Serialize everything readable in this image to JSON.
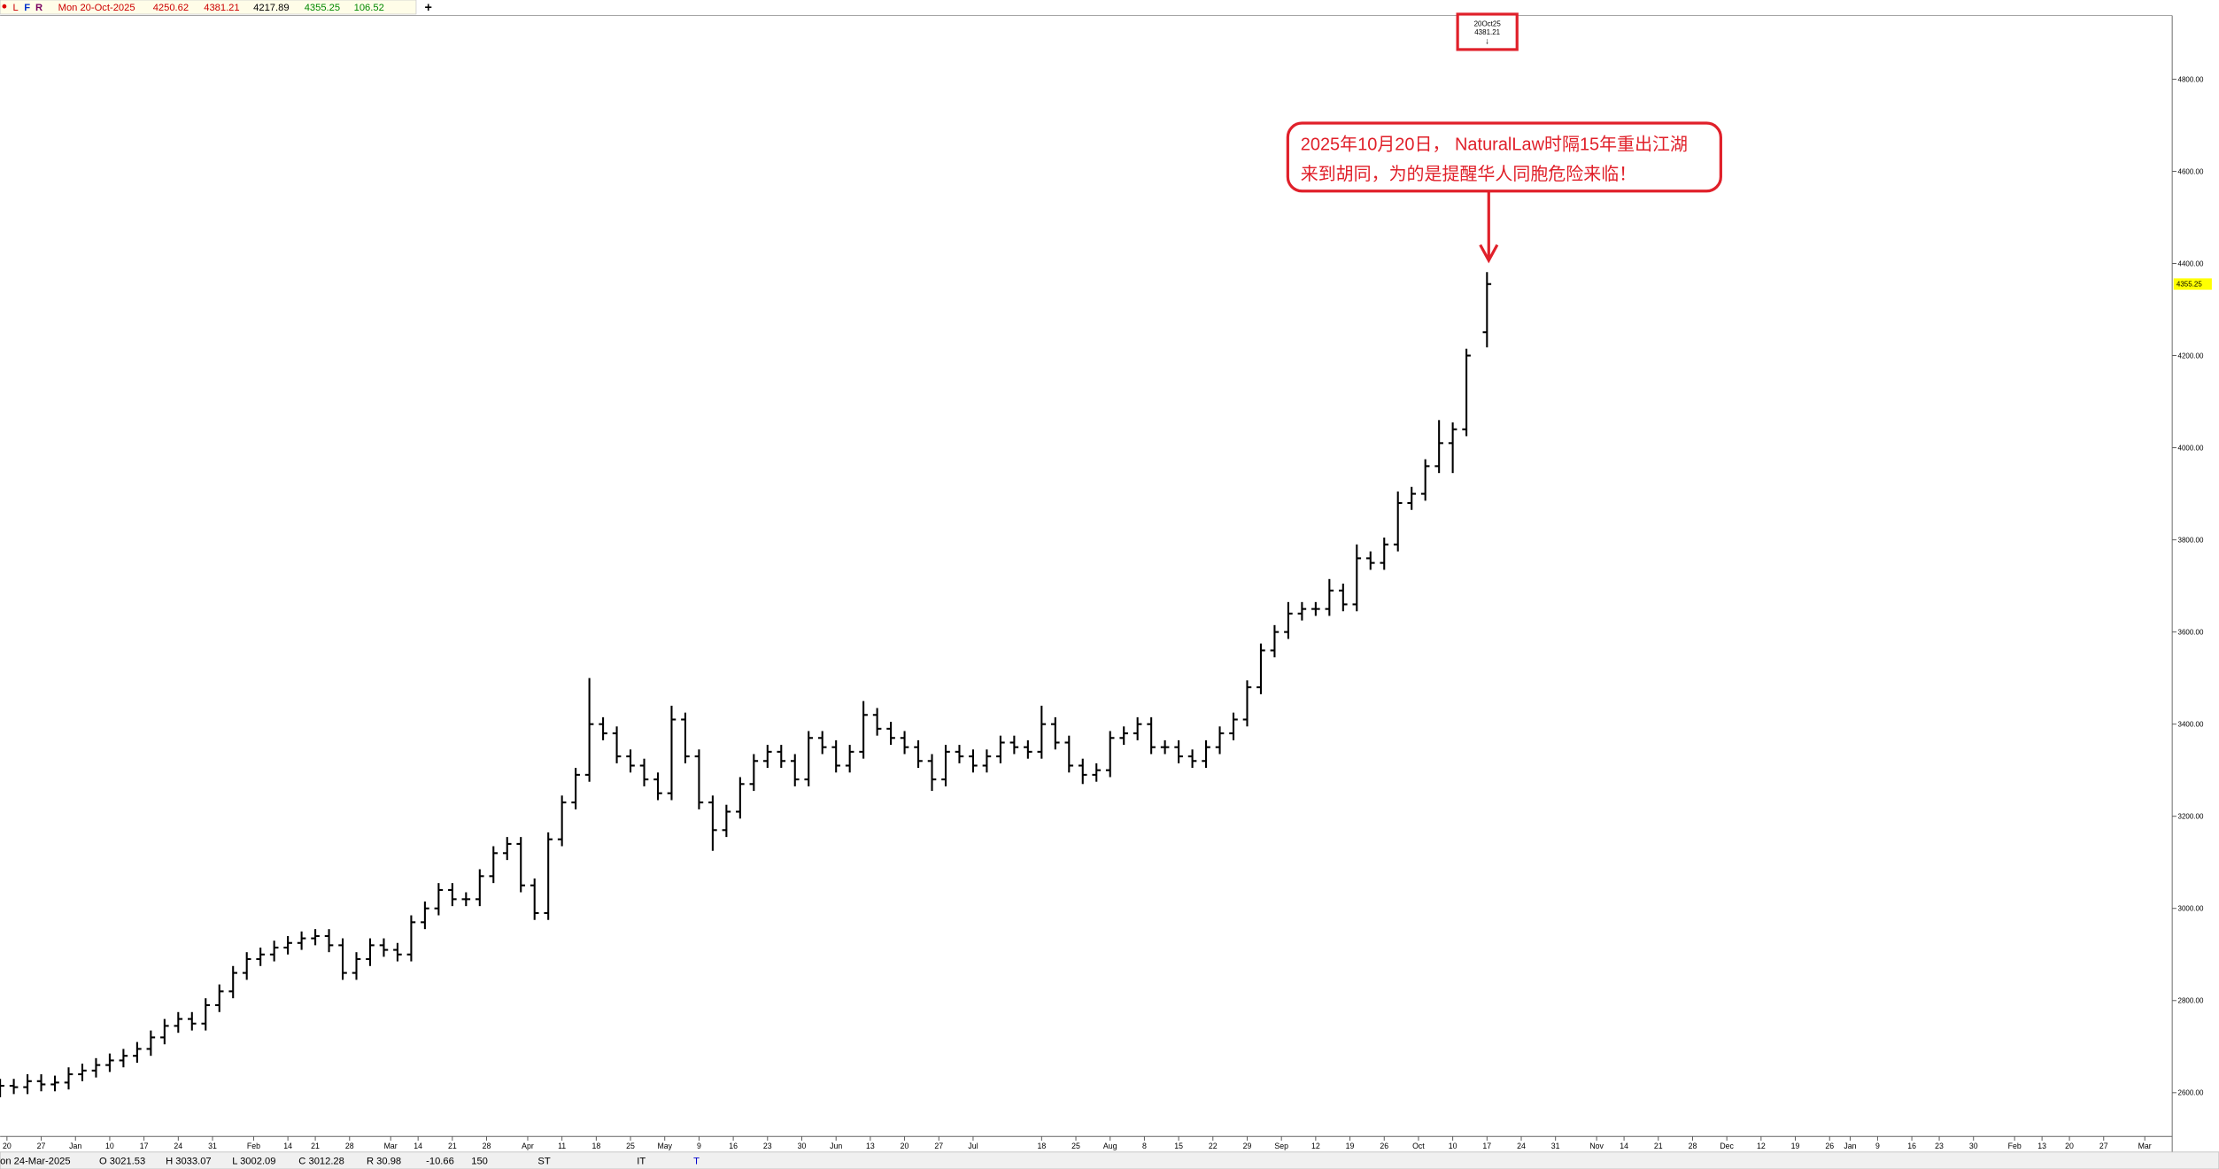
{
  "header": {
    "buttons": [
      "L",
      "F",
      "R"
    ],
    "date": "Mon 20-Oct-2025",
    "change": "106.52",
    "tab": "+"
  },
  "status_bar": {
    "date": "on 24-Mar-2025",
    "open": "O 3021.53",
    "high": "H 3033.07",
    "low": "L 3002.09",
    "close": "C 3012.28",
    "range": "R 30.98",
    "change": "-10.66",
    "count": "150",
    "fields": [
      "ST",
      "IT",
      "T"
    ]
  },
  "chart_data": {
    "type": "ohlc",
    "marker": {
      "date": "20Oct25"
    },
    "annotation": {
      "lines": [
        "2025年10月20日， NaturalLaw时隔15年重出江湖",
        "来到胡同，为的是提醒华人同胞危险来临！"
      ],
      "color": "#e0202a"
    },
    "color": "#000000",
    "xlim": [
      0,
      317
    ],
    "ylim": [
      2505,
      4935
    ],
    "yticks": [
      {
        "value": 2600,
        "label": "2600.00"
      },
      {
        "value": 2800,
        "label": "2800.00"
      },
      {
        "value": 3000,
        "label": "3000.00"
      },
      {
        "value": 3200,
        "label": "3200.00"
      },
      {
        "value": 3400,
        "label": "3400.00"
      },
      {
        "value": 3600,
        "label": "3600.00"
      },
      {
        "value": 3800,
        "label": "3800.00"
      },
      {
        "value": 4000,
        "label": "4000.00"
      },
      {
        "value": 4200,
        "label": "4200.00"
      },
      {
        "value": 4400,
        "label": "4400.00"
      },
      {
        "value": 4600,
        "label": "4600.00"
      },
      {
        "value": 4800,
        "label": "4800.00"
      }
    ],
    "xticks": [
      {
        "value": 1,
        "label": "20"
      },
      {
        "value": 6,
        "label": "27"
      },
      {
        "value": 11,
        "label": "Jan"
      },
      {
        "value": 16,
        "label": "10"
      },
      {
        "value": 21,
        "label": "17"
      },
      {
        "value": 26,
        "label": "24"
      },
      {
        "value": 31,
        "label": "31"
      },
      {
        "value": 37,
        "label": "Feb"
      },
      {
        "value": 42,
        "label": "14"
      },
      {
        "value": 46,
        "label": "21"
      },
      {
        "value": 51,
        "label": "28"
      },
      {
        "value": 57,
        "label": "Mar"
      },
      {
        "value": 61,
        "label": "14"
      },
      {
        "value": 66,
        "label": "21"
      },
      {
        "value": 71,
        "label": "28"
      },
      {
        "value": 77,
        "label": "Apr"
      },
      {
        "value": 82,
        "label": "11"
      },
      {
        "value": 87,
        "label": "18"
      },
      {
        "value": 92,
        "label": "25"
      },
      {
        "value": 97,
        "label": "May"
      },
      {
        "value": 102,
        "label": "9"
      },
      {
        "value": 107,
        "label": "16"
      },
      {
        "value": 112,
        "label": "23"
      },
      {
        "value": 117,
        "label": "30"
      },
      {
        "value": 122,
        "label": "Jun"
      },
      {
        "value": 127,
        "label": "13"
      },
      {
        "value": 132,
        "label": "20"
      },
      {
        "value": 137,
        "label": "27"
      },
      {
        "value": 142,
        "label": "Jul"
      },
      {
        "value": 152,
        "label": "18"
      },
      {
        "value": 157,
        "label": "25"
      },
      {
        "value": 162,
        "label": "Aug"
      },
      {
        "value": 167,
        "label": "8"
      },
      {
        "value": 172,
        "label": "15"
      },
      {
        "value": 177,
        "label": "22"
      },
      {
        "value": 182,
        "label": "29"
      },
      {
        "value": 187,
        "label": "Sep"
      },
      {
        "value": 192,
        "label": "12"
      },
      {
        "value": 197,
        "label": "19"
      },
      {
        "value": 202,
        "label": "26"
      },
      {
        "value": 207,
        "label": "Oct"
      },
      {
        "value": 212,
        "label": "10"
      },
      {
        "value": 217,
        "label": "17"
      },
      {
        "value": 222,
        "label": "24"
      },
      {
        "value": 227,
        "label": "31"
      },
      {
        "value": 233,
        "label": "Nov"
      },
      {
        "value": 237,
        "label": "14"
      },
      {
        "value": 242,
        "label": "21"
      },
      {
        "value": 247,
        "label": "28"
      },
      {
        "value": 252,
        "label": "Dec"
      },
      {
        "value": 257,
        "label": "12"
      },
      {
        "value": 262,
        "label": "19"
      },
      {
        "value": 267,
        "label": "26"
      },
      {
        "value": 270,
        "label": "Jan"
      },
      {
        "value": 274,
        "label": "9"
      },
      {
        "value": 279,
        "label": "16"
      },
      {
        "value": 283,
        "label": "23"
      },
      {
        "value": 288,
        "label": "30"
      },
      {
        "value": 294,
        "label": "Feb"
      },
      {
        "value": 298,
        "label": "13"
      },
      {
        "value": 302,
        "label": "20"
      },
      {
        "value": 307,
        "label": "27"
      },
      {
        "value": 313,
        "label": "Mar"
      }
    ],
    "x": [
      0,
      2,
      4,
      6,
      8,
      10,
      12,
      14,
      16,
      18,
      20,
      22,
      24,
      26,
      28,
      30,
      32,
      34,
      36,
      38,
      40,
      42,
      44,
      46,
      48,
      50,
      52,
      54,
      56,
      58,
      60,
      62,
      64,
      66,
      68,
      70,
      72,
      74,
      76,
      78,
      80,
      82,
      84,
      86,
      88,
      90,
      92,
      94,
      96,
      98,
      100,
      102,
      104,
      106,
      108,
      110,
      112,
      114,
      116,
      118,
      120,
      122,
      124,
      126,
      128,
      130,
      132,
      134,
      136,
      138,
      140,
      142,
      144,
      146,
      148,
      150,
      152,
      154,
      156,
      158,
      160,
      162,
      164,
      166,
      168,
      170,
      172,
      174,
      176,
      178,
      180,
      182,
      184,
      186,
      188,
      190,
      192,
      194,
      196,
      198,
      200,
      202,
      204,
      206,
      208,
      210,
      212,
      214,
      217
    ],
    "bars": [
      [
        2605,
        2630,
        2590,
        2615
      ],
      [
        2615,
        2630,
        2597,
        2612
      ],
      [
        2612,
        2640,
        2597,
        2625
      ],
      [
        2625,
        2640,
        2603,
        2618
      ],
      [
        2618,
        2637,
        2603,
        2622
      ],
      [
        2622,
        2655,
        2607,
        2640
      ],
      [
        2640,
        2663,
        2625,
        2648
      ],
      [
        2648,
        2675,
        2633,
        2660
      ],
      [
        2660,
        2685,
        2645,
        2670
      ],
      [
        2670,
        2695,
        2655,
        2680
      ],
      [
        2680,
        2710,
        2665,
        2695
      ],
      [
        2695,
        2735,
        2680,
        2720
      ],
      [
        2720,
        2760,
        2705,
        2745
      ],
      [
        2745,
        2775,
        2730,
        2760
      ],
      [
        2760,
        2775,
        2735,
        2750
      ],
      [
        2750,
        2805,
        2735,
        2790
      ],
      [
        2790,
        2835,
        2775,
        2820
      ],
      [
        2820,
        2875,
        2805,
        2860
      ],
      [
        2860,
        2905,
        2845,
        2890
      ],
      [
        2890,
        2915,
        2875,
        2900
      ],
      [
        2900,
        2930,
        2885,
        2915
      ],
      [
        2915,
        2940,
        2900,
        2925
      ],
      [
        2925,
        2950,
        2910,
        2935
      ],
      [
        2935,
        2955,
        2920,
        2940
      ],
      [
        2940,
        2955,
        2905,
        2920
      ],
      [
        2920,
        2935,
        2845,
        2860
      ],
      [
        2860,
        2905,
        2845,
        2890
      ],
      [
        2890,
        2935,
        2875,
        2920
      ],
      [
        2920,
        2935,
        2895,
        2910
      ],
      [
        2910,
        2925,
        2885,
        2900
      ],
      [
        2900,
        2985,
        2885,
        2970
      ],
      [
        2970,
        3015,
        2955,
        3000
      ],
      [
        3000,
        3055,
        2985,
        3040
      ],
      [
        3040,
        3055,
        3005,
        3020
      ],
      [
        3020,
        3035,
        3005,
        3020
      ],
      [
        3020,
        3085,
        3005,
        3070
      ],
      [
        3070,
        3135,
        3055,
        3120
      ],
      [
        3120,
        3155,
        3105,
        3140
      ],
      [
        3140,
        3155,
        3035,
        3050
      ],
      [
        3050,
        3065,
        2975,
        2990
      ],
      [
        2990,
        3165,
        2975,
        3150
      ],
      [
        3150,
        3245,
        3135,
        3230
      ],
      [
        3230,
        3305,
        3215,
        3290
      ],
      [
        3290,
        3500,
        3275,
        3400
      ],
      [
        3400,
        3415,
        3365,
        3380
      ],
      [
        3380,
        3395,
        3315,
        3330
      ],
      [
        3330,
        3345,
        3295,
        3310
      ],
      [
        3310,
        3325,
        3265,
        3280
      ],
      [
        3280,
        3295,
        3235,
        3250
      ],
      [
        3250,
        3440,
        3235,
        3410
      ],
      [
        3410,
        3425,
        3315,
        3330
      ],
      [
        3330,
        3345,
        3215,
        3230
      ],
      [
        3230,
        3245,
        3125,
        3170
      ],
      [
        3170,
        3225,
        3155,
        3210
      ],
      [
        3210,
        3285,
        3195,
        3270
      ],
      [
        3270,
        3335,
        3255,
        3320
      ],
      [
        3320,
        3355,
        3305,
        3340
      ],
      [
        3340,
        3355,
        3305,
        3320
      ],
      [
        3320,
        3335,
        3265,
        3280
      ],
      [
        3280,
        3385,
        3265,
        3370
      ],
      [
        3370,
        3385,
        3335,
        3350
      ],
      [
        3350,
        3365,
        3295,
        3310
      ],
      [
        3310,
        3355,
        3295,
        3340
      ],
      [
        3340,
        3450,
        3325,
        3420
      ],
      [
        3420,
        3435,
        3375,
        3390
      ],
      [
        3390,
        3405,
        3355,
        3370
      ],
      [
        3370,
        3385,
        3335,
        3350
      ],
      [
        3350,
        3365,
        3305,
        3320
      ],
      [
        3320,
        3335,
        3255,
        3280
      ],
      [
        3280,
        3355,
        3265,
        3340
      ],
      [
        3340,
        3355,
        3315,
        3330
      ],
      [
        3330,
        3345,
        3295,
        3310
      ],
      [
        3310,
        3345,
        3295,
        3330
      ],
      [
        3330,
        3375,
        3315,
        3360
      ],
      [
        3360,
        3375,
        3335,
        3350
      ],
      [
        3350,
        3365,
        3325,
        3340
      ],
      [
        3340,
        3440,
        3325,
        3400
      ],
      [
        3400,
        3415,
        3345,
        3360
      ],
      [
        3360,
        3375,
        3295,
        3310
      ],
      [
        3310,
        3325,
        3270,
        3290
      ],
      [
        3290,
        3315,
        3275,
        3300
      ],
      [
        3300,
        3385,
        3285,
        3370
      ],
      [
        3370,
        3395,
        3355,
        3380
      ],
      [
        3380,
        3415,
        3365,
        3400
      ],
      [
        3400,
        3415,
        3335,
        3350
      ],
      [
        3350,
        3365,
        3335,
        3350
      ],
      [
        3350,
        3365,
        3315,
        3330
      ],
      [
        3330,
        3345,
        3305,
        3320
      ],
      [
        3320,
        3365,
        3305,
        3350
      ],
      [
        3350,
        3395,
        3335,
        3380
      ],
      [
        3380,
        3425,
        3365,
        3410
      ],
      [
        3410,
        3495,
        3395,
        3480
      ],
      [
        3480,
        3575,
        3465,
        3560
      ],
      [
        3560,
        3615,
        3545,
        3600
      ],
      [
        3600,
        3665,
        3585,
        3640
      ],
      [
        3640,
        3665,
        3625,
        3650
      ],
      [
        3650,
        3665,
        3635,
        3650
      ],
      [
        3650,
        3715,
        3635,
        3690
      ],
      [
        3690,
        3705,
        3645,
        3660
      ],
      [
        3660,
        3790,
        3645,
        3760
      ],
      [
        3760,
        3775,
        3735,
        3750
      ],
      [
        3750,
        3805,
        3735,
        3790
      ],
      [
        3790,
        3905,
        3775,
        3880
      ],
      [
        3880,
        3915,
        3865,
        3900
      ],
      [
        3900,
        3975,
        3885,
        3960
      ],
      [
        3960,
        4060,
        3945,
        4010
      ],
      [
        4010,
        4055,
        3945,
        4040
      ],
      [
        4040,
        4215,
        4025,
        4200
      ],
      [
        4250.62,
        4381.21,
        4217.89,
        4355.25
      ]
    ]
  }
}
